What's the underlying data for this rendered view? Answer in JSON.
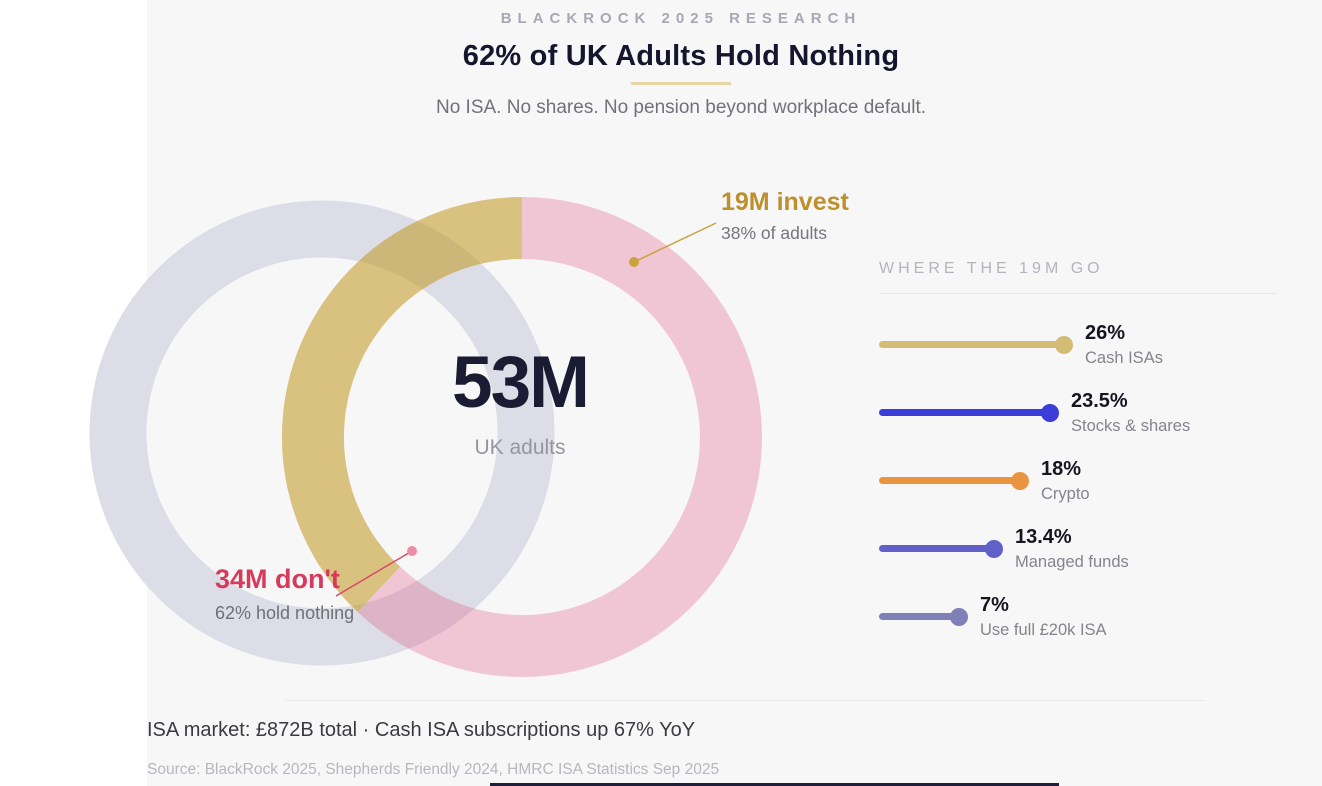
{
  "page": {
    "background": "#ffffff",
    "card_background": "#f7f7f8"
  },
  "header": {
    "kicker": "BLACKROCK 2025 RESEARCH",
    "title": "62% of UK Adults Hold Nothing",
    "subtitle": "No ISA. No shares. No pension beyond workplace default.",
    "underline_color": "#e7d7a4"
  },
  "footer": {
    "note": "ISA market: £872B total · Cash ISA subscriptions up 67% YoY",
    "source": "Source: BlackRock 2025, Shepherds Friendly 2024, HMRC ISA Statistics Sep 2025"
  },
  "chart_data": [
    {
      "type": "pie",
      "subtype": "donut",
      "title": "UK adults investing split",
      "total_label": "53M",
      "total_sublabel": "UK adults",
      "backdrop_ring_color": "#dcdde6",
      "slices": [
        {
          "label": "19M invest",
          "sublabel": "38% of adults",
          "value": 38,
          "fill": "rgba(193,152,30,0.55)",
          "flat_color": "#dbc383",
          "label_color": "#bd8f2d",
          "connector": "#c9a23b",
          "dot": "#c9a23b"
        },
        {
          "label": "34M don't",
          "sublabel": "62% hold nothing",
          "value": 62,
          "fill": "rgba(224,87,128,0.30)",
          "flat_color": "#f3c9d5",
          "label_color": "#d63a5c",
          "connector": "#d84a66",
          "dot": "#ec8da5"
        }
      ]
    },
    {
      "type": "bar",
      "title": "WHERE THE 19M GO",
      "orientation": "horizontal",
      "categories": [
        "Cash ISAs",
        "Stocks & shares",
        "Crypto",
        "Managed funds",
        "Use full £20k ISA"
      ],
      "values": [
        26,
        23.5,
        18,
        13.4,
        7
      ],
      "value_labels": [
        "26%",
        "23.5%",
        "18%",
        "13.4%",
        "7%"
      ],
      "colors": [
        "#d4bc77",
        "#3c3cd9",
        "#e9953f",
        "#6060c8",
        "#8080b8"
      ],
      "xlim": [
        0,
        26
      ],
      "grid": false,
      "legend": "none"
    }
  ]
}
